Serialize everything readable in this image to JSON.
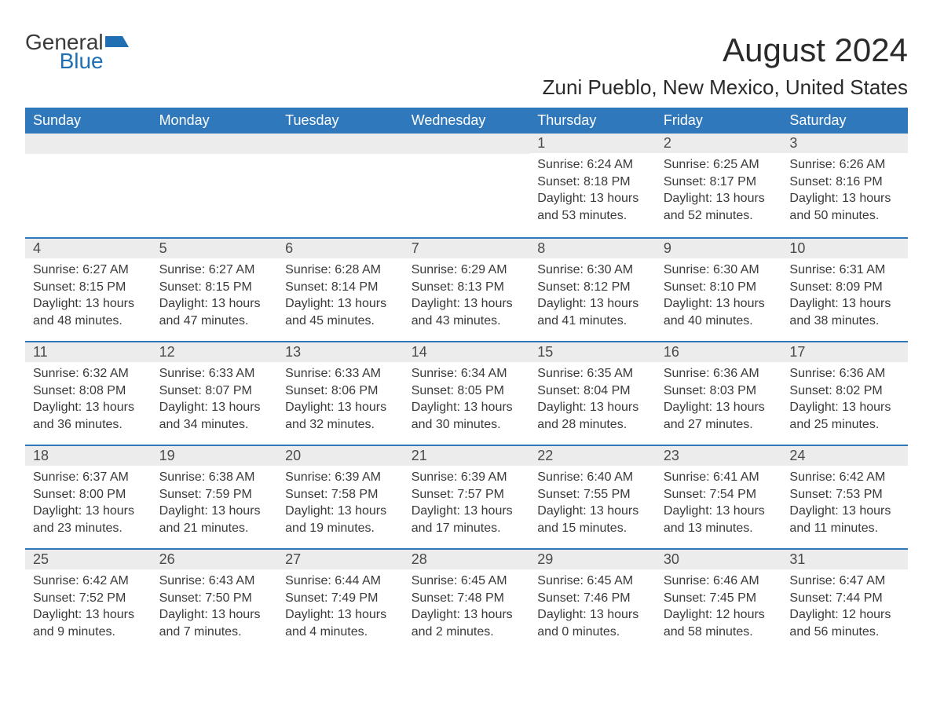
{
  "brand": {
    "word1": "General",
    "word2": "Blue",
    "word1_color": "#3a3a3a",
    "word2_color": "#1f6fb2",
    "icon_color": "#1f6fb2"
  },
  "title": "August 2024",
  "subtitle": "Zuni Pueblo, New Mexico, United States",
  "colors": {
    "header_bg": "#2f78bc",
    "header_text": "#ffffff",
    "daynum_bg": "#ececec",
    "border": "#2f78bc",
    "text": "#3a3a3a"
  },
  "weekdays": [
    "Sunday",
    "Monday",
    "Tuesday",
    "Wednesday",
    "Thursday",
    "Friday",
    "Saturday"
  ],
  "leading_blanks": 4,
  "days": [
    {
      "n": 1,
      "sunrise": "6:24 AM",
      "sunset": "8:18 PM",
      "daylight": "13 hours and 53 minutes."
    },
    {
      "n": 2,
      "sunrise": "6:25 AM",
      "sunset": "8:17 PM",
      "daylight": "13 hours and 52 minutes."
    },
    {
      "n": 3,
      "sunrise": "6:26 AM",
      "sunset": "8:16 PM",
      "daylight": "13 hours and 50 minutes."
    },
    {
      "n": 4,
      "sunrise": "6:27 AM",
      "sunset": "8:15 PM",
      "daylight": "13 hours and 48 minutes."
    },
    {
      "n": 5,
      "sunrise": "6:27 AM",
      "sunset": "8:15 PM",
      "daylight": "13 hours and 47 minutes."
    },
    {
      "n": 6,
      "sunrise": "6:28 AM",
      "sunset": "8:14 PM",
      "daylight": "13 hours and 45 minutes."
    },
    {
      "n": 7,
      "sunrise": "6:29 AM",
      "sunset": "8:13 PM",
      "daylight": "13 hours and 43 minutes."
    },
    {
      "n": 8,
      "sunrise": "6:30 AM",
      "sunset": "8:12 PM",
      "daylight": "13 hours and 41 minutes."
    },
    {
      "n": 9,
      "sunrise": "6:30 AM",
      "sunset": "8:10 PM",
      "daylight": "13 hours and 40 minutes."
    },
    {
      "n": 10,
      "sunrise": "6:31 AM",
      "sunset": "8:09 PM",
      "daylight": "13 hours and 38 minutes."
    },
    {
      "n": 11,
      "sunrise": "6:32 AM",
      "sunset": "8:08 PM",
      "daylight": "13 hours and 36 minutes."
    },
    {
      "n": 12,
      "sunrise": "6:33 AM",
      "sunset": "8:07 PM",
      "daylight": "13 hours and 34 minutes."
    },
    {
      "n": 13,
      "sunrise": "6:33 AM",
      "sunset": "8:06 PM",
      "daylight": "13 hours and 32 minutes."
    },
    {
      "n": 14,
      "sunrise": "6:34 AM",
      "sunset": "8:05 PM",
      "daylight": "13 hours and 30 minutes."
    },
    {
      "n": 15,
      "sunrise": "6:35 AM",
      "sunset": "8:04 PM",
      "daylight": "13 hours and 28 minutes."
    },
    {
      "n": 16,
      "sunrise": "6:36 AM",
      "sunset": "8:03 PM",
      "daylight": "13 hours and 27 minutes."
    },
    {
      "n": 17,
      "sunrise": "6:36 AM",
      "sunset": "8:02 PM",
      "daylight": "13 hours and 25 minutes."
    },
    {
      "n": 18,
      "sunrise": "6:37 AM",
      "sunset": "8:00 PM",
      "daylight": "13 hours and 23 minutes."
    },
    {
      "n": 19,
      "sunrise": "6:38 AM",
      "sunset": "7:59 PM",
      "daylight": "13 hours and 21 minutes."
    },
    {
      "n": 20,
      "sunrise": "6:39 AM",
      "sunset": "7:58 PM",
      "daylight": "13 hours and 19 minutes."
    },
    {
      "n": 21,
      "sunrise": "6:39 AM",
      "sunset": "7:57 PM",
      "daylight": "13 hours and 17 minutes."
    },
    {
      "n": 22,
      "sunrise": "6:40 AM",
      "sunset": "7:55 PM",
      "daylight": "13 hours and 15 minutes."
    },
    {
      "n": 23,
      "sunrise": "6:41 AM",
      "sunset": "7:54 PM",
      "daylight": "13 hours and 13 minutes."
    },
    {
      "n": 24,
      "sunrise": "6:42 AM",
      "sunset": "7:53 PM",
      "daylight": "13 hours and 11 minutes."
    },
    {
      "n": 25,
      "sunrise": "6:42 AM",
      "sunset": "7:52 PM",
      "daylight": "13 hours and 9 minutes."
    },
    {
      "n": 26,
      "sunrise": "6:43 AM",
      "sunset": "7:50 PM",
      "daylight": "13 hours and 7 minutes."
    },
    {
      "n": 27,
      "sunrise": "6:44 AM",
      "sunset": "7:49 PM",
      "daylight": "13 hours and 4 minutes."
    },
    {
      "n": 28,
      "sunrise": "6:45 AM",
      "sunset": "7:48 PM",
      "daylight": "13 hours and 2 minutes."
    },
    {
      "n": 29,
      "sunrise": "6:45 AM",
      "sunset": "7:46 PM",
      "daylight": "13 hours and 0 minutes."
    },
    {
      "n": 30,
      "sunrise": "6:46 AM",
      "sunset": "7:45 PM",
      "daylight": "12 hours and 58 minutes."
    },
    {
      "n": 31,
      "sunrise": "6:47 AM",
      "sunset": "7:44 PM",
      "daylight": "12 hours and 56 minutes."
    }
  ],
  "labels": {
    "sunrise": "Sunrise: ",
    "sunset": "Sunset: ",
    "daylight": "Daylight: "
  }
}
